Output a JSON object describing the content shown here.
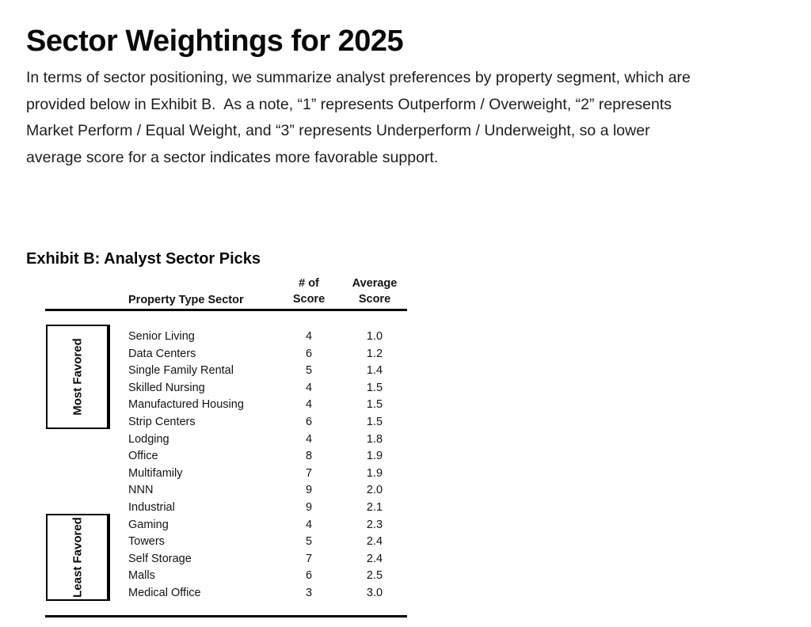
{
  "document": {
    "title": "Sector Weightings for 2025",
    "paragraph_lines": [
      "In terms of sector positioning, we summarize analyst preferences by property segment, which are",
      "provided below in Exhibit B.  As a note, “1” represents Outperform / Overweight, “2” represents",
      "Market Perform / Equal Weight, and “3” represents Underperform / Underweight, so a lower",
      "average score for a sector indicates more favorable support."
    ],
    "exhibit_title": "Exhibit B: Analyst Sector Picks"
  },
  "table": {
    "headers": {
      "sector": "Property Type Sector",
      "count_line1": "# of",
      "count_line2": "Score",
      "avg_line1": "Average",
      "avg_line2": "Score"
    },
    "groups": {
      "most_favored": "Most Favored",
      "least_favored": "Least Favored"
    },
    "rows": [
      {
        "sector": "Senior Living",
        "count": "4",
        "avg": "1.0"
      },
      {
        "sector": "Data Centers",
        "count": "6",
        "avg": "1.2"
      },
      {
        "sector": "Single Family Rental",
        "count": "5",
        "avg": "1.4"
      },
      {
        "sector": "Skilled Nursing",
        "count": "4",
        "avg": "1.5"
      },
      {
        "sector": "Manufactured Housing",
        "count": "4",
        "avg": "1.5"
      },
      {
        "sector": "Strip Centers",
        "count": "6",
        "avg": "1.5"
      },
      {
        "sector": "Lodging",
        "count": "4",
        "avg": "1.8"
      },
      {
        "sector": "Office",
        "count": "8",
        "avg": "1.9"
      },
      {
        "sector": "Multifamily",
        "count": "7",
        "avg": "1.9"
      },
      {
        "sector": "NNN",
        "count": "9",
        "avg": "2.0"
      },
      {
        "sector": "Industrial",
        "count": "9",
        "avg": "2.1"
      },
      {
        "sector": "Gaming",
        "count": "4",
        "avg": "2.3"
      },
      {
        "sector": "Towers",
        "count": "5",
        "avg": "2.4"
      },
      {
        "sector": "Self Storage",
        "count": "7",
        "avg": "2.4"
      },
      {
        "sector": "Malls",
        "count": "6",
        "avg": "2.5"
      },
      {
        "sector": "Medical Office",
        "count": "3",
        "avg": "3.0"
      }
    ]
  },
  "colors": {
    "text": "#141414",
    "rule": "#000000",
    "background": "#ffffff"
  }
}
